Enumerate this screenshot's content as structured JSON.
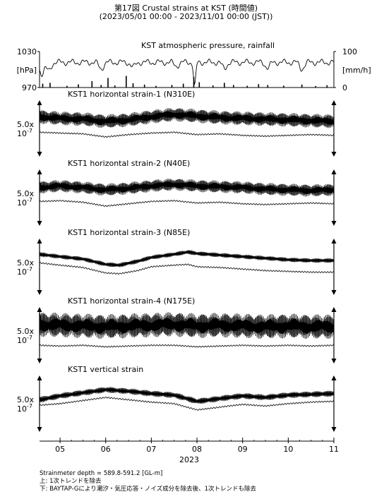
{
  "title_line1": "第17図 Crustal strains at KST (時間値)",
  "title_line2": "(2023/05/01 00:00 - 2023/11/01 00:00 (JST))",
  "notes": {
    "depth": "Strainmeter depth = 589.8-591.2 [GL-m]",
    "upper": "上: 1次トレンドを除去",
    "lower": "下: BAYTAP-Gにより潮汐・気圧応答・ノイズ成分を除去後、1次トレンドも除去"
  },
  "chart_data": {
    "type": "line",
    "xaxis": {
      "tick_labels": [
        "05",
        "06",
        "07",
        "08",
        "09",
        "10",
        "11"
      ],
      "tick_months": [
        5,
        6,
        7,
        8,
        9,
        10,
        11
      ],
      "range_months": [
        4.55,
        11.0
      ],
      "year_label": "2023"
    },
    "pressure_panel": {
      "title": "KST atmospheric pressure, rainfall",
      "left_ticks": [
        "1030",
        "[hPa]",
        "970"
      ],
      "right_ticks": [
        "100",
        "[mm/h]",
        "0"
      ],
      "pressure_range_hpa": [
        970,
        1030
      ],
      "rain_range_mmh": [
        0,
        100
      ],
      "pressure_baseline_hpa": 1012,
      "pressure_dips": [
        {
          "month": 4.6,
          "hpa": 993
        },
        {
          "month": 4.75,
          "hpa": 998
        },
        {
          "month": 5.9,
          "hpa": 1001
        },
        {
          "month": 6.6,
          "hpa": 1004
        },
        {
          "month": 7.55,
          "hpa": 1006
        },
        {
          "month": 7.95,
          "hpa": 972
        },
        {
          "month": 8.6,
          "hpa": 1002
        },
        {
          "month": 9.55,
          "hpa": 1003
        },
        {
          "month": 10.3,
          "hpa": 1001
        }
      ],
      "rain_events": [
        {
          "month": 4.62,
          "mmh": 18
        },
        {
          "month": 4.78,
          "mmh": 22
        },
        {
          "month": 5.15,
          "mmh": 8
        },
        {
          "month": 5.4,
          "mmh": 15
        },
        {
          "month": 5.7,
          "mmh": 30
        },
        {
          "month": 5.9,
          "mmh": 12
        },
        {
          "month": 6.05,
          "mmh": 45
        },
        {
          "month": 6.2,
          "mmh": 10
        },
        {
          "month": 6.45,
          "mmh": 55
        },
        {
          "month": 6.6,
          "mmh": 20
        },
        {
          "month": 6.85,
          "mmh": 14
        },
        {
          "month": 7.1,
          "mmh": 8
        },
        {
          "month": 7.45,
          "mmh": 12
        },
        {
          "month": 7.7,
          "mmh": 18
        },
        {
          "month": 7.93,
          "mmh": 50
        },
        {
          "month": 8.05,
          "mmh": 25
        },
        {
          "month": 8.35,
          "mmh": 10
        },
        {
          "month": 8.6,
          "mmh": 22
        },
        {
          "month": 8.8,
          "mmh": 12
        },
        {
          "month": 9.1,
          "mmh": 8
        },
        {
          "month": 9.35,
          "mmh": 16
        },
        {
          "month": 9.55,
          "mmh": 12
        },
        {
          "month": 9.9,
          "mmh": 9
        },
        {
          "month": 10.3,
          "mmh": 14
        },
        {
          "month": 10.6,
          "mmh": 7
        },
        {
          "month": 10.85,
          "mmh": 11
        }
      ]
    },
    "scale_label_top": "5.0x",
    "scale_label_bottom": "10",
    "scale_label_exponent": "-7",
    "strain_panels": [
      {
        "title": "KST1 horizontal strain-1 (N310E)",
        "upper_trend": [
          [
            4.55,
            0.3
          ],
          [
            5.0,
            0.2
          ],
          [
            5.5,
            0.15
          ],
          [
            6.0,
            0.0
          ],
          [
            6.5,
            0.1
          ],
          [
            7.0,
            0.3
          ],
          [
            7.5,
            0.45
          ],
          [
            8.0,
            0.35
          ],
          [
            8.5,
            0.25
          ],
          [
            9.0,
            0.2
          ],
          [
            9.5,
            0.15
          ],
          [
            10.0,
            0.1
          ],
          [
            10.5,
            0.05
          ],
          [
            11.0,
            0.0
          ]
        ],
        "upper_amplitude": 0.45,
        "lower_trend": [
          [
            4.55,
            -0.7
          ],
          [
            5.0,
            -0.75
          ],
          [
            5.5,
            -0.8
          ],
          [
            6.0,
            -1.0
          ],
          [
            6.5,
            -0.85
          ],
          [
            7.0,
            -0.75
          ],
          [
            7.5,
            -0.7
          ],
          [
            8.0,
            -0.85
          ],
          [
            8.5,
            -0.8
          ],
          [
            9.0,
            -0.9
          ],
          [
            9.5,
            -0.95
          ],
          [
            10.0,
            -0.9
          ],
          [
            10.5,
            -0.85
          ],
          [
            11.0,
            -0.9
          ]
        ]
      },
      {
        "title": "KST1 horizontal strain-2 (N40E)",
        "upper_trend": [
          [
            4.55,
            0.2
          ],
          [
            5.0,
            0.3
          ],
          [
            5.5,
            0.2
          ],
          [
            6.0,
            0.05
          ],
          [
            6.5,
            0.15
          ],
          [
            7.0,
            0.3
          ],
          [
            7.5,
            0.4
          ],
          [
            8.0,
            0.3
          ],
          [
            8.5,
            0.25
          ],
          [
            9.0,
            0.2
          ],
          [
            9.5,
            0.1
          ],
          [
            10.0,
            0.05
          ],
          [
            10.5,
            0.0
          ],
          [
            11.0,
            0.05
          ]
        ],
        "upper_amplitude": 0.4,
        "lower_trend": [
          [
            4.55,
            -0.7
          ],
          [
            5.0,
            -0.65
          ],
          [
            5.5,
            -0.75
          ],
          [
            6.0,
            -1.0
          ],
          [
            6.5,
            -0.85
          ],
          [
            7.0,
            -0.7
          ],
          [
            7.5,
            -0.65
          ],
          [
            8.0,
            -0.8
          ],
          [
            8.5,
            -0.75
          ],
          [
            9.0,
            -0.85
          ],
          [
            9.5,
            -0.9
          ],
          [
            10.0,
            -0.85
          ],
          [
            10.5,
            -0.8
          ],
          [
            11.0,
            -0.85
          ]
        ]
      },
      {
        "title": "KST1 horizontal strain-3 (N85E)",
        "upper_trend": [
          [
            4.55,
            0.35
          ],
          [
            5.0,
            0.2
          ],
          [
            5.5,
            0.05
          ],
          [
            6.0,
            -0.3
          ],
          [
            6.3,
            -0.35
          ],
          [
            6.7,
            -0.1
          ],
          [
            7.0,
            0.15
          ],
          [
            7.5,
            0.35
          ],
          [
            7.8,
            0.5
          ],
          [
            8.0,
            0.4
          ],
          [
            8.5,
            0.3
          ],
          [
            9.0,
            0.2
          ],
          [
            9.5,
            0.1
          ],
          [
            10.0,
            0.0
          ],
          [
            10.5,
            -0.05
          ],
          [
            11.0,
            -0.05
          ]
        ],
        "upper_amplitude": 0.15,
        "lower_trend": [
          [
            4.55,
            -0.2
          ],
          [
            5.0,
            -0.35
          ],
          [
            5.5,
            -0.5
          ],
          [
            6.0,
            -0.85
          ],
          [
            6.3,
            -0.9
          ],
          [
            6.7,
            -0.7
          ],
          [
            7.0,
            -0.45
          ],
          [
            7.5,
            -0.35
          ],
          [
            7.8,
            -0.3
          ],
          [
            8.0,
            -0.45
          ],
          [
            8.5,
            -0.5
          ],
          [
            9.0,
            -0.6
          ],
          [
            9.5,
            -0.7
          ],
          [
            10.0,
            -0.75
          ],
          [
            10.5,
            -0.8
          ],
          [
            11.0,
            -0.8
          ]
        ]
      },
      {
        "title": "KST1 horizontal strain-4 (N175E)",
        "upper_trend": [
          [
            4.55,
            0.25
          ],
          [
            5.0,
            0.2
          ],
          [
            5.5,
            0.15
          ],
          [
            6.0,
            0.1
          ],
          [
            6.5,
            0.15
          ],
          [
            7.0,
            0.2
          ],
          [
            7.5,
            0.25
          ],
          [
            8.0,
            0.15
          ],
          [
            8.5,
            0.2
          ],
          [
            9.0,
            0.15
          ],
          [
            9.5,
            0.1
          ],
          [
            10.0,
            0.15
          ],
          [
            10.5,
            0.1
          ],
          [
            11.0,
            0.1
          ]
        ],
        "upper_amplitude": 0.8,
        "lower_trend": [
          [
            4.55,
            -1.1
          ],
          [
            5.0,
            -1.15
          ],
          [
            5.5,
            -1.1
          ],
          [
            6.0,
            -1.2
          ],
          [
            6.5,
            -1.15
          ],
          [
            7.0,
            -1.1
          ],
          [
            7.5,
            -1.1
          ],
          [
            8.0,
            -1.2
          ],
          [
            8.5,
            -1.15
          ],
          [
            9.0,
            -1.1
          ],
          [
            9.5,
            -1.15
          ],
          [
            10.0,
            -1.1
          ],
          [
            10.5,
            -1.15
          ],
          [
            11.0,
            -1.1
          ]
        ]
      },
      {
        "title": "KST1 vertical strain",
        "upper_trend": [
          [
            4.55,
            -0.2
          ],
          [
            5.0,
            0.05
          ],
          [
            5.5,
            0.25
          ],
          [
            6.0,
            0.45
          ],
          [
            6.5,
            0.35
          ],
          [
            7.0,
            0.2
          ],
          [
            7.5,
            0.1
          ],
          [
            8.0,
            -0.3
          ],
          [
            8.3,
            -0.2
          ],
          [
            8.7,
            -0.05
          ],
          [
            9.0,
            0.05
          ],
          [
            9.5,
            -0.05
          ],
          [
            10.0,
            0.1
          ],
          [
            10.5,
            0.15
          ],
          [
            11.0,
            0.2
          ]
        ],
        "upper_amplitude": 0.2,
        "lower_trend": [
          [
            4.55,
            -0.55
          ],
          [
            5.0,
            -0.45
          ],
          [
            5.5,
            -0.25
          ],
          [
            6.0,
            -0.05
          ],
          [
            6.5,
            -0.2
          ],
          [
            7.0,
            -0.35
          ],
          [
            7.5,
            -0.45
          ],
          [
            8.0,
            -0.85
          ],
          [
            8.3,
            -0.75
          ],
          [
            8.7,
            -0.6
          ],
          [
            9.0,
            -0.5
          ],
          [
            9.5,
            -0.6
          ],
          [
            10.0,
            -0.45
          ],
          [
            10.5,
            -0.35
          ],
          [
            11.0,
            -0.3
          ]
        ]
      }
    ]
  }
}
